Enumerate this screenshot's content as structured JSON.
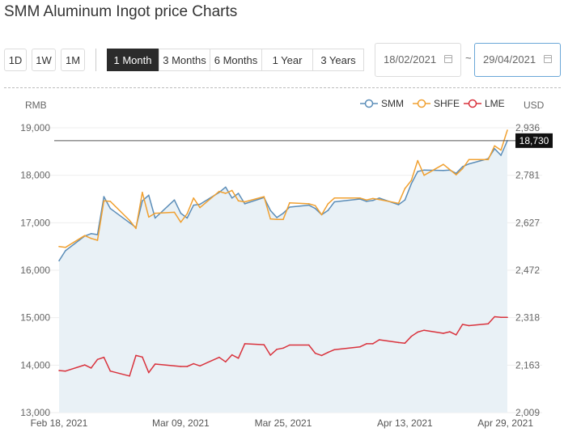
{
  "title": "SMM Aluminum Ingot price Charts",
  "buttons": {
    "d1": "1D",
    "w1": "1W",
    "m1": "1M",
    "one_month": "1 Month",
    "three_months": "3 Months",
    "six_months": "6 Months",
    "one_year": "1 Year",
    "three_years": "3 Years"
  },
  "date_range": {
    "start": "18/02/2021",
    "separator": "~",
    "end": "29/04/2021"
  },
  "colors": {
    "smm": "#5b8db8",
    "shfe": "#f0a030",
    "lme": "#d9323c",
    "area": "#e9f1f6",
    "active_button": "#2b2b2b"
  },
  "icons": {
    "calendar": "calendar-icon"
  },
  "chart_data": {
    "type": "line",
    "left_axis": {
      "unit": "RMB",
      "ylim": [
        13000,
        19000
      ],
      "ticks": [
        "19,000",
        "18,000",
        "17,000",
        "16,000",
        "15,000",
        "14,000",
        "13,000"
      ]
    },
    "right_axis": {
      "unit": "USD",
      "ylim": [
        2009,
        2936
      ],
      "ticks": [
        "2,936",
        "2,781",
        "2,627",
        "2,472",
        "2,318",
        "2,163",
        "2,009"
      ]
    },
    "x_range": [
      "2021-02-18",
      "2021-04-29"
    ],
    "x_tick_labels": [
      "Feb 18, 2021",
      "Mar 09, 2021",
      "Mar 25, 2021",
      "Apr 13, 2021",
      "Apr 29, 2021"
    ],
    "x_tick_dates": [
      "2021-02-18",
      "2021-03-09",
      "2021-03-25",
      "2021-04-13",
      "2021-04-29"
    ],
    "grid": true,
    "legend_position": "top-right",
    "reference_line": {
      "value": 18730,
      "label": "18,730"
    },
    "dates": [
      "2021-02-18",
      "2021-02-19",
      "2021-02-22",
      "2021-02-23",
      "2021-02-24",
      "2021-02-25",
      "2021-02-26",
      "2021-03-01",
      "2021-03-02",
      "2021-03-03",
      "2021-03-04",
      "2021-03-05",
      "2021-03-08",
      "2021-03-09",
      "2021-03-10",
      "2021-03-11",
      "2021-03-12",
      "2021-03-15",
      "2021-03-16",
      "2021-03-17",
      "2021-03-18",
      "2021-03-19",
      "2021-03-22",
      "2021-03-23",
      "2021-03-24",
      "2021-03-25",
      "2021-03-26",
      "2021-03-29",
      "2021-03-30",
      "2021-03-31",
      "2021-04-01",
      "2021-04-02",
      "2021-04-06",
      "2021-04-07",
      "2021-04-08",
      "2021-04-09",
      "2021-04-12",
      "2021-04-13",
      "2021-04-14",
      "2021-04-15",
      "2021-04-16",
      "2021-04-19",
      "2021-04-20",
      "2021-04-21",
      "2021-04-22",
      "2021-04-23",
      "2021-04-26",
      "2021-04-27",
      "2021-04-28",
      "2021-04-29"
    ],
    "series": [
      {
        "name": "SMM",
        "axis": "left",
        "area": true,
        "values": [
          16200,
          16410,
          16720,
          16770,
          16750,
          17550,
          17300,
          17000,
          16900,
          17460,
          17580,
          17100,
          17480,
          17200,
          17100,
          17370,
          17390,
          17640,
          17750,
          17520,
          17620,
          17400,
          17530,
          17260,
          17110,
          17200,
          17330,
          17370,
          17300,
          17170,
          17260,
          17440,
          17500,
          17450,
          17470,
          17520,
          17380,
          17480,
          17820,
          18080,
          18110,
          18100,
          18110,
          18040,
          18180,
          18240,
          18350,
          18560,
          18420,
          18730
        ]
      },
      {
        "name": "SHFE",
        "axis": "left",
        "area": false,
        "values": [
          16500,
          16480,
          16730,
          16670,
          16630,
          17460,
          17450,
          17050,
          16880,
          17640,
          17120,
          17200,
          17220,
          17010,
          17190,
          17520,
          17320,
          17660,
          17620,
          17680,
          17460,
          17440,
          17550,
          17080,
          17070,
          17070,
          17420,
          17400,
          17360,
          17170,
          17400,
          17520,
          17520,
          17480,
          17510,
          17490,
          17410,
          17720,
          17890,
          18310,
          18000,
          18230,
          18120,
          18010,
          18140,
          18330,
          18330,
          18620,
          18530,
          18950
        ]
      },
      {
        "name": "LME",
        "axis": "right",
        "area": false,
        "values": [
          2146,
          2144,
          2164,
          2154,
          2182,
          2189,
          2144,
          2128,
          2195,
          2190,
          2139,
          2167,
          2161,
          2159,
          2159,
          2168,
          2161,
          2189,
          2174,
          2197,
          2186,
          2233,
          2230,
          2196,
          2215,
          2219,
          2229,
          2229,
          2202,
          2195,
          2205,
          2214,
          2223,
          2233,
          2233,
          2246,
          2237,
          2235,
          2257,
          2271,
          2277,
          2267,
          2272,
          2262,
          2296,
          2292,
          2298,
          2321,
          2319,
          2319
        ]
      }
    ]
  }
}
